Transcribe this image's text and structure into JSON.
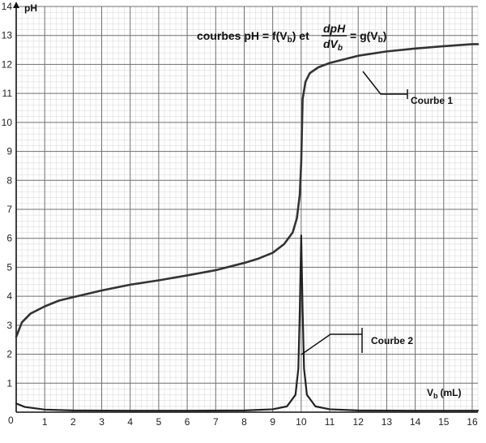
{
  "chart_data": {
    "type": "line",
    "title_parts": {
      "main": "courbes pH = f(V",
      "sub1": "b",
      "mid": ") et",
      "frac_num": "dpH",
      "frac_den_main": "dV",
      "frac_den_sub": "b",
      "tail_main": "= g(V",
      "tail_sub": "b",
      "tail_end": ")"
    },
    "ylabel": "pH",
    "xlabel_main": "V",
    "xlabel_sub": "b",
    "xlabel_unit": "(mL)",
    "xlim": [
      0,
      16.2
    ],
    "ylim": [
      0,
      14
    ],
    "grid": true,
    "origin_label": "0",
    "x_ticks": [
      1,
      2,
      3,
      4,
      5,
      6,
      7,
      8,
      9,
      10,
      11,
      12,
      13,
      14,
      15,
      16
    ],
    "y_ticks": [
      1,
      2,
      3,
      4,
      5,
      6,
      7,
      8,
      9,
      10,
      11,
      12,
      13,
      14
    ],
    "series": [
      {
        "name": "Courbe 1",
        "color": "#333333",
        "x": [
          0,
          0.2,
          0.5,
          1,
          1.5,
          2,
          3,
          4,
          5,
          6,
          7,
          8,
          8.5,
          9,
          9.4,
          9.7,
          9.85,
          9.95,
          10.0,
          10.05,
          10.15,
          10.3,
          10.6,
          11,
          12,
          13,
          14,
          15,
          16,
          16.2
        ],
        "y": [
          2.6,
          3.1,
          3.4,
          3.65,
          3.85,
          3.97,
          4.2,
          4.4,
          4.55,
          4.72,
          4.9,
          5.15,
          5.3,
          5.5,
          5.8,
          6.2,
          6.7,
          7.5,
          8.6,
          10.8,
          11.4,
          11.7,
          11.9,
          12.05,
          12.3,
          12.45,
          12.55,
          12.63,
          12.7,
          12.7
        ]
      },
      {
        "name": "Courbe 2",
        "color": "#222222",
        "x": [
          0,
          0.3,
          1,
          2,
          4,
          6,
          8,
          9,
          9.5,
          9.8,
          9.9,
          9.95,
          10.0,
          10.05,
          10.1,
          10.2,
          10.5,
          11,
          12,
          14,
          16,
          16.2
        ],
        "y": [
          0.3,
          0.18,
          0.09,
          0.06,
          0.05,
          0.05,
          0.06,
          0.1,
          0.2,
          0.6,
          1.5,
          3.5,
          6.1,
          3.5,
          1.5,
          0.6,
          0.2,
          0.1,
          0.06,
          0.05,
          0.05,
          0.05
        ]
      }
    ]
  }
}
